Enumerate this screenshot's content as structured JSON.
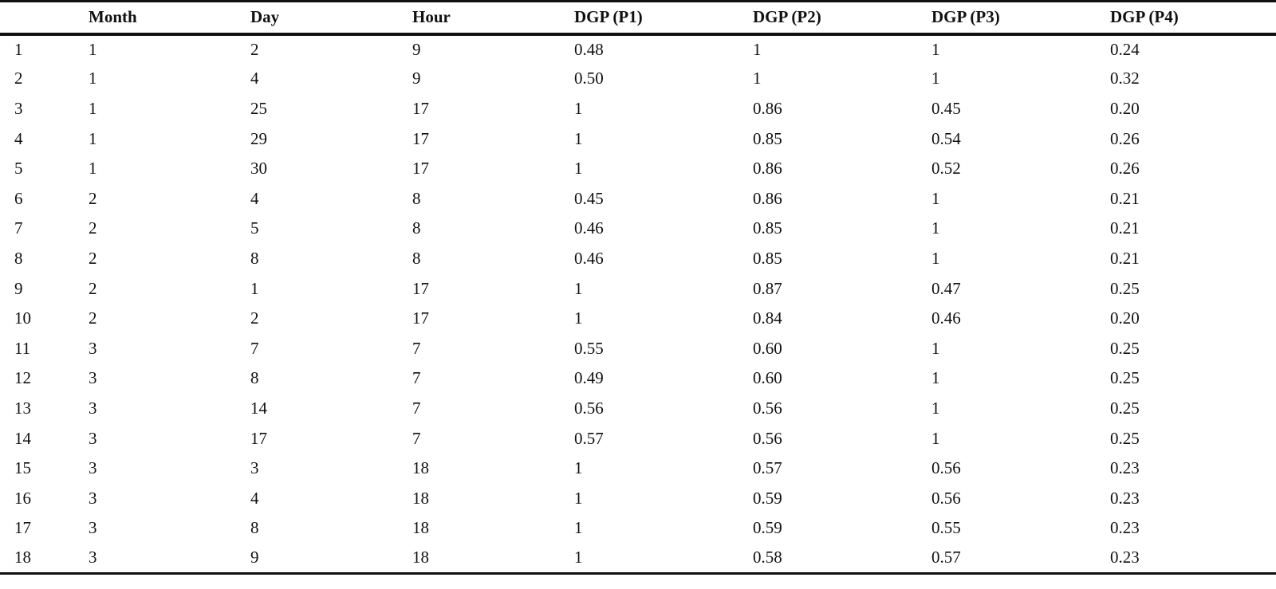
{
  "table": {
    "headers": [
      "",
      "Month",
      "Day",
      "Hour",
      "DGP (P1)",
      "DGP (P2)",
      "DGP (P3)",
      "DGP (P4)"
    ],
    "rows": [
      [
        "1",
        "1",
        "2",
        "9",
        "0.48",
        "1",
        "1",
        "0.24"
      ],
      [
        "2",
        "1",
        "4",
        "9",
        "0.50",
        "1",
        "1",
        "0.32"
      ],
      [
        "3",
        "1",
        "25",
        "17",
        "1",
        "0.86",
        "0.45",
        "0.20"
      ],
      [
        "4",
        "1",
        "29",
        "17",
        "1",
        "0.85",
        "0.54",
        "0.26"
      ],
      [
        "5",
        "1",
        "30",
        "17",
        "1",
        "0.86",
        "0.52",
        "0.26"
      ],
      [
        "6",
        "2",
        "4",
        "8",
        "0.45",
        "0.86",
        "1",
        "0.21"
      ],
      [
        "7",
        "2",
        "5",
        "8",
        "0.46",
        "0.85",
        "1",
        "0.21"
      ],
      [
        "8",
        "2",
        "8",
        "8",
        "0.46",
        "0.85",
        "1",
        "0.21"
      ],
      [
        "9",
        "2",
        "1",
        "17",
        "1",
        "0.87",
        "0.47",
        "0.25"
      ],
      [
        "10",
        "2",
        "2",
        "17",
        "1",
        "0.84",
        "0.46",
        "0.20"
      ],
      [
        "11",
        "3",
        "7",
        "7",
        "0.55",
        "0.60",
        "1",
        "0.25"
      ],
      [
        "12",
        "3",
        "8",
        "7",
        "0.49",
        "0.60",
        "1",
        "0.25"
      ],
      [
        "13",
        "3",
        "14",
        "7",
        "0.56",
        "0.56",
        "1",
        "0.25"
      ],
      [
        "14",
        "3",
        "17",
        "7",
        "0.57",
        "0.56",
        "1",
        "0.25"
      ],
      [
        "15",
        "3",
        "3",
        "18",
        "1",
        "0.57",
        "0.56",
        "0.23"
      ],
      [
        "16",
        "3",
        "4",
        "18",
        "1",
        "0.59",
        "0.56",
        "0.23"
      ],
      [
        "17",
        "3",
        "8",
        "18",
        "1",
        "0.59",
        "0.55",
        "0.23"
      ],
      [
        "18",
        "3",
        "9",
        "18",
        "1",
        "0.58",
        "0.57",
        "0.23"
      ]
    ]
  }
}
